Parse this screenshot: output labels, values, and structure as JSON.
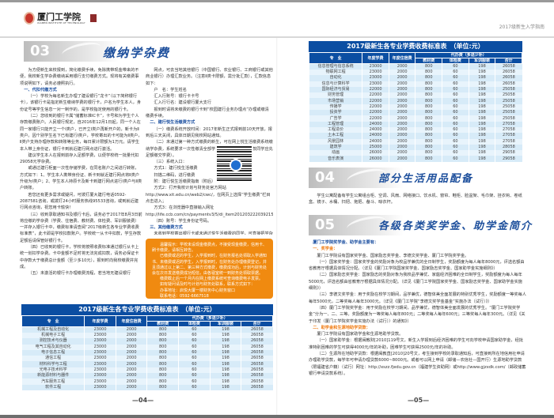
{
  "header": {
    "school_name": "厦门工学院",
    "school_name_en": "XIAMEN INSTITUTE OF TECHNOLOGY",
    "guide_title": "2017级新生入学指南"
  },
  "left_page": {
    "section": {
      "number": "03",
      "title": "缴纳学杂费"
    },
    "col1": [
      {
        "type": "p",
        "text": "为方便新生来校报到，简化缴费手续，免除携带现金带来的不便，我校新生学杂费缴纳采用银行支付缴费方式。现将有关缴费事项说明如下，请务必遵照执行。"
      },
      {
        "type": "h",
        "text": "一、代扣代缴方式"
      },
      {
        "type": "p",
        "text": "（一）学校为每名新生办理了建设银行“龙卡”（以下简称银行卡），该银行卡是指定新生缴纳学费的银行卡，户名为学生本人，身份证号等学生信息一对一制作的，是学校指定使用的银行卡。"
      },
      {
        "type": "p",
        "text": "（二）您收到的银行卡属“储蓄标准IC卡”，卡号和为学生个人存款缴费账户。人民银行规定，自2016年12月1日起，同一个人在同一家银行只能开立一个Ⅰ类户，已开立Ⅰ类户再新开户的，新卡为Ⅱ类户。因个别学生名下已有建行Ⅰ类户，学校寄出的卡可能为Ⅱ类户，Ⅱ类户支持办理存款和转账等业务，每日累计限额为1万元。请学生本人带上身份证，银行卡到就近建行网点进行激活。"
      },
      {
        "type": "p",
        "text": "建议学生本人在报到前存入足额学费，以便学校统一批量代扣29058元学杂费。"
      },
      {
        "type": "p",
        "text": "或通过建行柜面一次性存储学费，在同名账户之间进行转账，方式如下：1、学生本人携带身份证、新卡到就近建行网点将Ⅱ类户升级为Ⅰ类户；2、学生本人持原卡及新卡到建行网点进行Ⅰ类户与Ⅱ类户转账。"
      },
      {
        "type": "p",
        "text": "若您还有更多需求或疑问，可拨打厦大建行电话0592-2087581咨询，或拨打24小时服务热线95533咨询，或到就近建行网点咨询，祝您用卡愉快！"
      },
      {
        "type": "p",
        "text": "（三）收到录取通知书及银行卡后，请务必于2017年8月3日前将应缴的学杂费（学费、住宿费、教材费、体检费、军训服装费）一并存入银行卡中，缴费标准请查阅“2017级新生各专业学费收费标准表”，此卡即是学校扣款账户。学校统一从卡中扣款，学生存款足额后请保管好银行卡。"
      },
      {
        "type": "p",
        "text": "（四）已收到的银行卡，学校将按照收费标准通过银行从卡上统一划扣学杂费。卡中金额不足时将无法完成扣款，请务必保证卡中存款大于缴费总计金额（至少多10元），报到时向我校缴费并完成。"
      },
      {
        "type": "p",
        "text": "（五）未激活的银行卡办理缴费流程，若当地无建设银行"
      }
    ],
    "col2": [
      {
        "type": "p",
        "text": "网点，可去当地其他银行（中国银行、农业银行、工商银行或其他商业银行）办理汇款业务。（注意Ⅱ类卡限额，需分批汇款），汇款信息如下："
      },
      {
        "type": "p",
        "text": "户　名：学生姓名"
      },
      {
        "type": "p",
        "text": "汇入行账号：银行卡卡号"
      },
      {
        "type": "p",
        "text": "汇入行行名：建设银行厦大支行"
      },
      {
        "type": "p",
        "text": "报到时请将未缴费的银行卡到“校园建行业务办理点”办理或缴清缴费手续。"
      },
      {
        "type": "h",
        "text": "二、建行悦生活缴费方式"
      },
      {
        "type": "p",
        "text": "（一）缴费系统开放时间：2017年新生正式报到前10天开放，报到后三天关闭，具体日期见我校网站通知。"
      },
      {
        "type": "p",
        "text": "（二）未通过第一种方式缴费的新生，可在网上悦生活缴费系统缴纳学杂费，系统要求一次性缴清全部学杂费（有申请助学贷款同学应先足额缴交学费）。"
      },
      {
        "type": "p",
        "text": "（三）系统入口："
      },
      {
        "type": "p",
        "text": "方式1：建行悦生活缴费"
      },
      {
        "type": "p",
        "text": "扫描二维码，进行缴费"
      },
      {
        "type": "p",
        "text": "附：建行悦生活缴费指南（附后）"
      },
      {
        "type": "p",
        "text": "方式2：打开我校计划与财务处官方网站 http://www.xit.edu.cn/web2/cwc/，在网页上选择“学生缴费”栏目点击进入；"
      },
      {
        "type": "p",
        "text": "方式3：在浏览器中直接输入网址 http://life.ccb.com/cn/paymentv3/5/di_item20120322203921505615545.html"
      },
      {
        "type": "p",
        "text": "（四）账号：学生身份证号码。"
      },
      {
        "type": "h",
        "text": "三、其他缴费方式"
      },
      {
        "type": "p",
        "text": "未收到学校寄出银行卡或未通过悦生活缴费的同学，可直接把学杂费转入以下账户；另有申请生源地贷款的同学，助学贷款也转入以下账户，转款时请备注姓名、身份证号。"
      },
      {
        "type": "p",
        "text": "户　名：厦门工学院"
      },
      {
        "type": "p",
        "text": "账　号：35101567001052505991"
      },
      {
        "type": "p",
        "text": "开户行：建行厦大支行"
      }
    ],
    "notice": [
      "温馨提示：学校未设现金缴费点，不接受现金缴费，信用卡、刷卡缴费，请相互转告。",
      "已缴费或迟的学生，入学报到时，在财务报名处领取入学通知书、未缴费或迟的学生，入学报到时，在财务处办理缴费登记，并且须通过以上第二、第三种方式缴费，缴费成功后，计划与财务处会在次日发送缴费成功短信，由各寝室统一到财务处领取票据。",
      "缴费截止后一个月内在网上缴费系统可查询缴费电子发票。",
      "如有疑问请及时与计划与财务处联系，联系方式如下：",
      "办事地址：启悦大厦一楼财务中心财务窗口",
      "联系电话：0592-6667518"
    ],
    "table": {
      "title": "2017级新生各专业学费收费标准表　（单位:元）",
      "headers": {
        "major": "专　业",
        "tuition": "年度学费",
        "dorm": "年度住宿费",
        "agency": "代办费（多退少补）",
        "books": "教材费",
        "exam": "体检费",
        "uniform": "军训服装",
        "total": "合计"
      },
      "rows": [
        [
          "机械工程及自动化",
          "23000",
          "2000",
          "800",
          "60",
          "198",
          "26058"
        ],
        [
          "机械电子工程",
          "23000",
          "2000",
          "800",
          "60",
          "198",
          "26058"
        ],
        [
          "测控技术与仪器",
          "23000",
          "2000",
          "800",
          "60",
          "198",
          "26058"
        ],
        [
          "电气工程及其自动化",
          "23000",
          "2000",
          "800",
          "60",
          "198",
          "26058"
        ],
        [
          "电子信息工程",
          "23000",
          "2000",
          "800",
          "60",
          "198",
          "26058"
        ],
        [
          "通信工程",
          "23000",
          "2000",
          "800",
          "60",
          "198",
          "26058"
        ],
        [
          "材料科学与工程",
          "23000",
          "2000",
          "800",
          "60",
          "198",
          "26058"
        ],
        [
          "光电子技术科学",
          "23000",
          "2000",
          "800",
          "60",
          "198",
          "26058"
        ],
        [
          "新能源材料与器件",
          "23000",
          "2000",
          "800",
          "60",
          "198",
          "26058"
        ],
        [
          "汽车服务工程",
          "23000",
          "2000",
          "800",
          "60",
          "198",
          "26058"
        ],
        [
          "软件工程",
          "23000",
          "2000",
          "800",
          "60",
          "198",
          "26058"
        ]
      ]
    },
    "page_number": "—04—"
  },
  "right_page": {
    "table": {
      "title": "2017级新生各专业学费收费标准表　（单位:元）",
      "headers": {
        "major": "专　业",
        "tuition": "年度学费",
        "dorm": "年度住宿费",
        "agency": "代办费（多退少补）",
        "books": "教材费",
        "exam": "体检费",
        "uniform": "军训服装",
        "total": "合计"
      },
      "rows": [
        [
          "信息管理与信息系统",
          "23000",
          "2000",
          "800",
          "60",
          "198",
          "26058"
        ],
        [
          "物联网工程",
          "23000",
          "2000",
          "800",
          "60",
          "198",
          "26058"
        ],
        [
          "自动化",
          "23000",
          "2000",
          "800",
          "60",
          "198",
          "26058"
        ],
        [
          "信息与计算科学",
          "23000",
          "2000",
          "800",
          "60",
          "198",
          "26058"
        ],
        [
          "国际经济与贸易",
          "22000",
          "2000",
          "800",
          "60",
          "198",
          "25058"
        ],
        [
          "财务管理",
          "22000",
          "2000",
          "800",
          "60",
          "198",
          "25058"
        ],
        [
          "市场营销",
          "22000",
          "2000",
          "800",
          "60",
          "198",
          "25058"
        ],
        [
          "传播学",
          "22000",
          "2000",
          "800",
          "60",
          "198",
          "25058"
        ],
        [
          "投资学",
          "22000",
          "2000",
          "800",
          "60",
          "198",
          "25058"
        ],
        [
          "广告学",
          "22000",
          "2000",
          "800",
          "60",
          "198",
          "25058"
        ],
        [
          "工程管理",
          "24000",
          "2000",
          "800",
          "60",
          "198",
          "27058"
        ],
        [
          "工程造价",
          "24000",
          "2000",
          "800",
          "60",
          "198",
          "27058"
        ],
        [
          "土木工程",
          "24000",
          "2000",
          "800",
          "60",
          "198",
          "27058"
        ],
        [
          "风景园林",
          "24000",
          "2000",
          "800",
          "60",
          "198",
          "27058"
        ],
        [
          "建筑学",
          "25000",
          "2000",
          "800",
          "60",
          "198",
          "28058"
        ],
        [
          "动画",
          "26000",
          "2000",
          "800",
          "60",
          "198",
          "29058"
        ],
        [
          "音乐表演",
          "26000",
          "2000",
          "800",
          "60",
          "198",
          "29058"
        ]
      ]
    },
    "section4": {
      "number": "04",
      "title": "部分生活用品配备",
      "text": "学生公寓配备有学生公寓组合柜、空调、风扇、网络接口、饮水机、窗帘、鞋柜、脸盆架、毛巾架、挂衣钩、卷纸盒、镜子、水桶、扫把、拖把、畚斗、晾衣杆。"
    },
    "section5": {
      "number": "05",
      "title": "各级各类奖学金、助学金简介",
      "body": [
        {
          "type": "h",
          "text": "厦门工学院奖学金、助学金主要有："
        },
        {
          "type": "o",
          "text": "一、奖学金："
        },
        {
          "type": "p",
          "text": "厦门工学院设有国家奖学金、国家励志奖学金、李德文奖学金、厦门工学院奖学金。"
        },
        {
          "type": "p",
          "text": "（一）国家奖学金：国家奖学金的奖励对象为校品学兼优的全日制学生，奖励额度为每人每年8000元，评选名额由省教育厅根据具体情况分配。（详见《厦门工学院国家奖学金、国家励志奖学金、国家助学金实施细则》）"
        },
        {
          "type": "p",
          "text": "（二）国家励志奖学金：国家励志的奖励对象为我校品学兼优、家庭经济困难的全日制学生，奖励额度为每人每年5000元，评选名额由省教育厅根据具体情况分配。（详见《厦门工学院国家奖学金、国家励志奖学金、国家助学金实施细则》）"
        },
        {
          "type": "p",
          "text": "（三）李德文奖学金：用于奖励在校学习期间，品学兼优，德智体美全面发展的特别优秀学生，奖励额度一等奖每人每年5000元，二等奖每人每年3000元。（详见《厦门工学院“李德文奖学金基金”实施办法（试行）》）"
        },
        {
          "type": "p",
          "text": "（四）厦门工学院奖学金：用于奖励在校学习期间，品学兼优，德智体美全面发展的优秀学生。“厦门工学院奖学金”分为一、二、三等。奖励额度为一等奖每人每年800元；二等奖每人每年600元；三等奖每人每年300元。（详见《关于印发〈厦门工学院奖学金实施办法（试行）〉的通知》）"
        },
        {
          "type": "o",
          "text": "二、助学金和生源地助学贷款："
        },
        {
          "type": "p",
          "text": "厦门工学院设有国家助学金和生源地助学贷款。"
        },
        {
          "type": "p",
          "text": "（一）国家助学金：根据闽教财[2010]119号文，新生入学报到后经济困难的学生可向学校申请国家助学金，经批准特别困难的学生可获得4000元/年的补助，困难学生可获得2500元/年的补助。"
        },
        {
          "type": "p",
          "text": "（二）生源所在地助学贷款：根据闽教直[2010]20号文，考生接到学校的录取通知后，可直接到所在地信用社申请办理助学贷款，每学年可申请办理贷款6000~8000元。或者可以网上申请（邮储—农信社—国开行）生源地助学贷款（限福建省户籍）（试行）网址：http://xszz.fjedu.gov.cn（福建学生资助网）或http://www.gjzxdk.com/（邮政储蓄银行申请贷款系统）。"
        }
      ]
    },
    "page_number": "—05—"
  }
}
